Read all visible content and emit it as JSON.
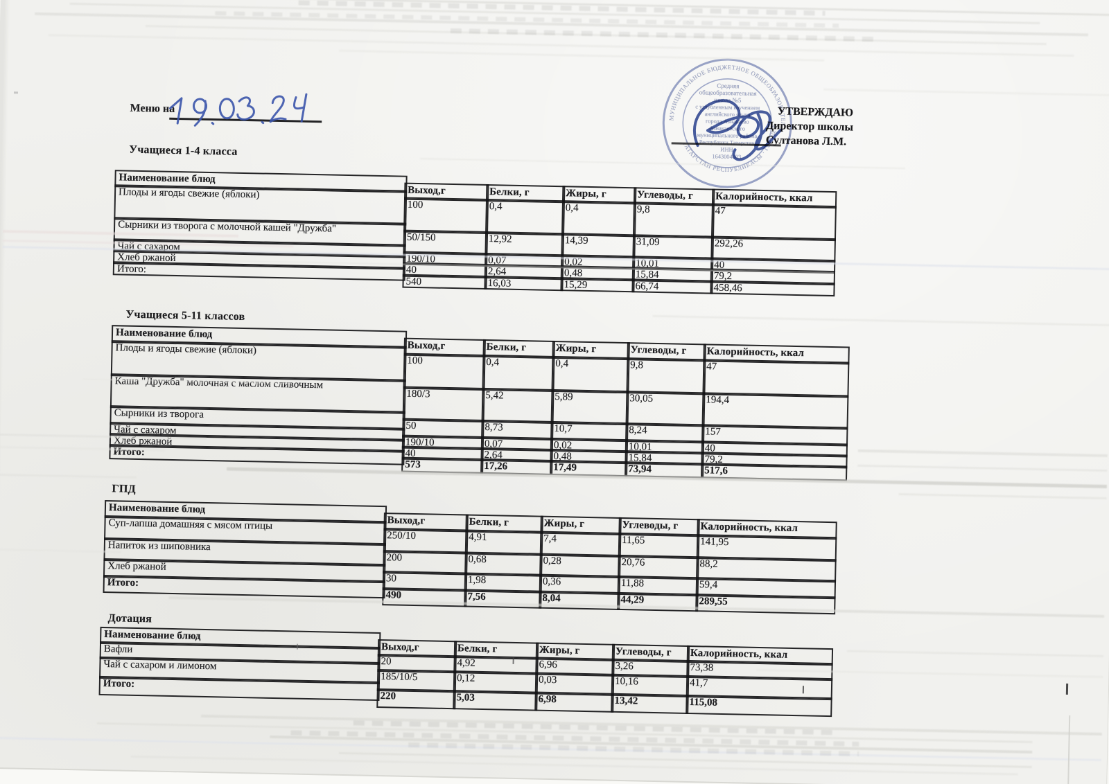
{
  "document": {
    "menu_label": "Меню на",
    "menu_date": "19.03.24",
    "approval": {
      "heading": "УТВЕРЖДАЮ",
      "line1": "Директор школы",
      "line2": "Султанова Л.М."
    },
    "stamp": {
      "ring_top": "МУНИЦИПАЛЬНОЕ БЮДЖЕТНОЕ ОБЩЕОБРАЗОВАТЕЛЬНОЕ УЧРЕЖДЕНИЕ",
      "ring_bottom": "ТАТАРСТАН РЕСПУБЛИКАСЫ · ГОРОД АЗНАКАЕВО",
      "center_lines": [
        "Средняя",
        "общеобразовательная",
        "школа №5",
        "с углубленным изучением",
        "английского языка",
        "города Азнакаево",
        "Азнакаевского",
        "муниципального района",
        "Республики Татарстан",
        "ИНН",
        "1643004003"
      ],
      "ink_color": "#44579f"
    }
  },
  "sections": [
    {
      "title": "Учащиеся 1-4 класса",
      "columns": [
        "Наименование блюд",
        "Выход,г",
        "Белки, г",
        "Жиры, г",
        "Углеводы, г",
        "Калорийность, ккал"
      ],
      "rows": [
        {
          "name": "Плоды и ягоды свежие (яблоки)",
          "values": [
            "100",
            "0,4",
            "0,4",
            "9,8",
            "47"
          ]
        },
        {
          "name": "Сырники из творога с молочной кашей \"Дружба\"",
          "values": [
            "50/150",
            "12,92",
            "14,39",
            "31,09",
            "292,26"
          ]
        },
        {
          "name": "Чай с сахаром",
          "values": [
            "190/10",
            "0,07",
            "0,02",
            "10,01",
            "40"
          ]
        },
        {
          "name": "Хлеб ржаной",
          "values": [
            "40",
            "2,64",
            "0,48",
            "15,84",
            "79,2"
          ]
        },
        {
          "name": "Итого:",
          "values": [
            "540",
            "16,03",
            "15,29",
            "66,74",
            "458,46"
          ]
        }
      ]
    },
    {
      "title": "Учащиеся 5-11 классов",
      "columns": [
        "Наименование блюд",
        "Выход,г",
        "Белки, г",
        "Жиры, г",
        "Углеводы, г",
        "Калорийность, ккал"
      ],
      "rows": [
        {
          "name": "Плоды и ягоды свежие (яблоки)",
          "values": [
            "100",
            "0,4",
            "0,4",
            "9,8",
            "47"
          ]
        },
        {
          "name": "Каша \"Дружба\" молочная с маслом сливочным",
          "values": [
            "180/3",
            "5,42",
            "5,89",
            "30,05",
            "194,4"
          ]
        },
        {
          "name": "Сырники из творога",
          "values": [
            "50",
            "8,73",
            "10,7",
            "8,24",
            "157"
          ]
        },
        {
          "name": "Чай с сахаром",
          "values": [
            "190/10",
            "0,07",
            "0,02",
            "10,01",
            "40"
          ]
        },
        {
          "name": "Хлеб ржаной",
          "values": [
            "40",
            "2,64",
            "0,48",
            "15,84",
            "79,2"
          ]
        },
        {
          "name": "Итого:",
          "values": [
            "573",
            "17,26",
            "17,49",
            "73,94",
            "517,6"
          ]
        }
      ]
    },
    {
      "title": "ГПД",
      "columns": [
        "Наименование блюд",
        "Выход,г",
        "Белки, г",
        "Жиры, г",
        "Углеводы, г",
        "Калорийность, ккал"
      ],
      "rows": [
        {
          "name": "Суп-лапша домашняя с мясом птицы",
          "values": [
            "250/10",
            "4,91",
            "7,4",
            "11,65",
            "141,95"
          ]
        },
        {
          "name": "Напиток из шиповника",
          "values": [
            "200",
            "0,68",
            "0,28",
            "20,76",
            "88,2"
          ]
        },
        {
          "name": "Хлеб ржаной",
          "values": [
            "30",
            "1,98",
            "0,36",
            "11,88",
            "59,4"
          ]
        },
        {
          "name": "Итого:",
          "values": [
            "490",
            "7,56",
            "8,04",
            "44,29",
            "289,55"
          ]
        }
      ]
    },
    {
      "title": "Дотация",
      "columns": [
        "Наименование блюд",
        "Выход,г",
        "Белки, г",
        "Жиры, г",
        "Углеводы, г",
        "Калорийность, ккал"
      ],
      "rows": [
        {
          "name": "Вафли",
          "values": [
            "20",
            "4,92",
            "6,96",
            "3,26",
            "73,38"
          ]
        },
        {
          "name": "Чай с сахаром и лимоном",
          "values": [
            "185/10/5",
            "0,12",
            "0,03",
            "10,16",
            "41,7"
          ]
        },
        {
          "name": "Итого:",
          "values": [
            "220",
            "5,03",
            "6,98",
            "13,42",
            "115,08"
          ]
        }
      ]
    }
  ]
}
